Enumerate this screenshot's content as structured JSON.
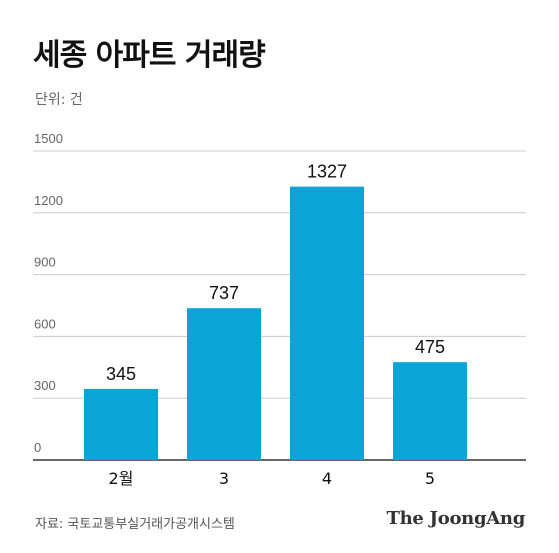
{
  "header": {
    "title": "세종 아파트 거래량",
    "unit": "단위: 건"
  },
  "footer": {
    "source": "자료: 국토교통부실거래가공개시스템",
    "logo": "The JoongAng"
  },
  "colors": {
    "bar": "#0aa5d6",
    "grid": "#cccccc",
    "axis": "#333333"
  },
  "chart_data": {
    "type": "bar",
    "title": "세종 아파트 거래량",
    "ylabel": "단위: 건",
    "categories": [
      "2월",
      "3",
      "4",
      "5"
    ],
    "values": [
      345,
      737,
      1327,
      475
    ],
    "data_labels": [
      "345",
      "737",
      "1327",
      "475"
    ],
    "yticks": [
      0,
      300,
      600,
      900,
      1200,
      1500
    ],
    "ylim": [
      0,
      1500
    ],
    "grid": true,
    "legend": "none"
  }
}
